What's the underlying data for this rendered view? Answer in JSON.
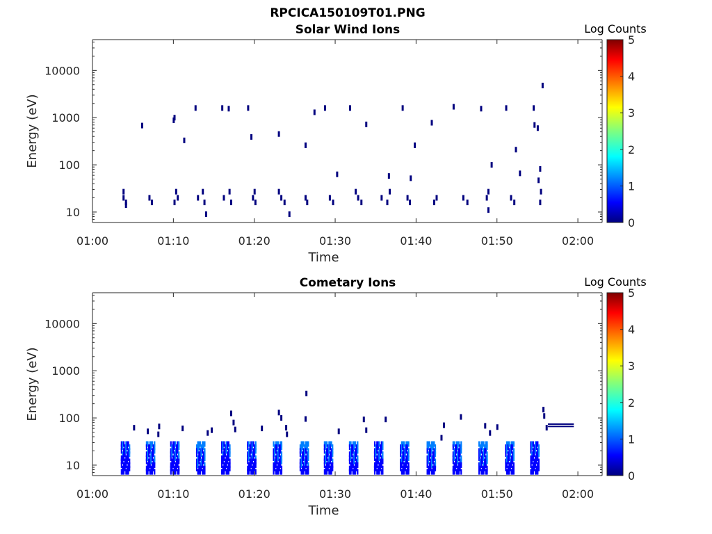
{
  "figure_title": "RPCICA150109T01.PNG",
  "colors": {
    "colormap": [
      "#00007f",
      "#0000ff",
      "#007fff",
      "#00ffff",
      "#7fff7f",
      "#ffff00",
      "#ff7f00",
      "#ff0000",
      "#7f0000"
    ],
    "axis": "#262626"
  },
  "chart_data": [
    {
      "type": "heatmap",
      "title": "Solar Wind Ions",
      "xlabel": "Time",
      "ylabel": "Energy (eV)",
      "yscale": "log",
      "xlim": [
        "01:00",
        "02:03"
      ],
      "ylim": [
        6,
        45000
      ],
      "xticks": [
        "01:00",
        "01:10",
        "01:20",
        "01:30",
        "01:40",
        "01:50",
        "02:00"
      ],
      "yticks": [
        "10",
        "100",
        "1000",
        "10000"
      ],
      "colorbar": {
        "label": "Log Counts",
        "range": [
          0,
          5
        ],
        "ticks": [
          "0",
          "1",
          "2",
          "3",
          "4",
          "5"
        ]
      },
      "grid": false,
      "points": [
        [
          "01:03.8",
          27,
          0.3
        ],
        [
          "01:03.8",
          20,
          0.3
        ],
        [
          "01:04.1",
          16,
          0.3
        ],
        [
          "01:04.1",
          14,
          0.3
        ],
        [
          "01:07.0",
          20,
          0.3
        ],
        [
          "01:07.3",
          16,
          0.3
        ],
        [
          "01:10.3",
          27,
          0.3
        ],
        [
          "01:10.1",
          16,
          0.3
        ],
        [
          "01:10.5",
          20,
          0.3
        ],
        [
          "01:13.0",
          20,
          0.3
        ],
        [
          "01:13.6",
          27,
          0.3
        ],
        [
          "01:13.8",
          16,
          0.3
        ],
        [
          "01:14.0",
          9,
          0.3
        ],
        [
          "01:16.2",
          20,
          0.3
        ],
        [
          "01:16.9",
          27,
          0.3
        ],
        [
          "01:17.1",
          16,
          0.3
        ],
        [
          "01:20.0",
          27,
          0.3
        ],
        [
          "01:19.8",
          20,
          0.3
        ],
        [
          "01:20.1",
          16,
          0.3
        ],
        [
          "01:23.0",
          27,
          0.3
        ],
        [
          "01:23.3",
          20,
          0.3
        ],
        [
          "01:23.7",
          16,
          0.3
        ],
        [
          "01:24.3",
          9,
          0.3
        ],
        [
          "01:26.3",
          20,
          0.3
        ],
        [
          "01:26.5",
          16,
          0.3
        ],
        [
          "01:29.3",
          20,
          0.3
        ],
        [
          "01:29.7",
          16,
          0.3
        ],
        [
          "01:32.5",
          27,
          0.3
        ],
        [
          "01:32.8",
          20,
          0.3
        ],
        [
          "01:33.2",
          16,
          0.3
        ],
        [
          "01:35.7",
          20,
          0.3
        ],
        [
          "01:36.4",
          16,
          0.3
        ],
        [
          "01:36.7",
          27,
          0.3
        ],
        [
          "01:38.9",
          20,
          0.3
        ],
        [
          "01:39.2",
          16,
          0.3
        ],
        [
          "01:42.5",
          20,
          0.3
        ],
        [
          "01:42.2",
          16,
          0.3
        ],
        [
          "01:45.8",
          20,
          0.3
        ],
        [
          "01:46.3",
          16,
          0.3
        ],
        [
          "01:48.9",
          27,
          0.3
        ],
        [
          "01:48.7",
          20,
          0.3
        ],
        [
          "01:48.9",
          11,
          0.3
        ],
        [
          "01:51.7",
          20,
          0.3
        ],
        [
          "01:52.1",
          16,
          0.3
        ],
        [
          "01:55.4",
          27,
          0.3
        ],
        [
          "01:55.3",
          16,
          0.3
        ],
        [
          "01:06.1",
          680,
          0.3
        ],
        [
          "01:10.1",
          1000,
          0.3
        ],
        [
          "01:10.0",
          880,
          0.3
        ],
        [
          "01:11.3",
          330,
          0.3
        ],
        [
          "01:12.7",
          1600,
          0.3
        ],
        [
          "01:16.0",
          1600,
          0.3
        ],
        [
          "01:16.8",
          1550,
          0.3
        ],
        [
          "01:19.2",
          1600,
          0.3
        ],
        [
          "01:19.6",
          390,
          0.3
        ],
        [
          "01:23.0",
          450,
          0.3
        ],
        [
          "01:26.3",
          260,
          0.3
        ],
        [
          "01:27.4",
          1300,
          0.3
        ],
        [
          "01:28.7",
          1600,
          0.3
        ],
        [
          "01:30.2",
          63,
          0.3
        ],
        [
          "01:31.8",
          1600,
          0.3
        ],
        [
          "01:33.8",
          720,
          0.3
        ],
        [
          "01:36.6",
          58,
          0.3
        ],
        [
          "01:38.3",
          1600,
          0.3
        ],
        [
          "01:39.3",
          52,
          0.3
        ],
        [
          "01:39.8",
          260,
          0.3
        ],
        [
          "01:41.9",
          780,
          0.3
        ],
        [
          "01:44.6",
          1700,
          0.3
        ],
        [
          "01:48.0",
          1550,
          0.3
        ],
        [
          "01:49.3",
          100,
          0.3
        ],
        [
          "01:51.1",
          1600,
          0.3
        ],
        [
          "01:52.3",
          210,
          0.3
        ],
        [
          "01:52.8",
          66,
          0.3
        ],
        [
          "01:54.5",
          1600,
          0.3
        ],
        [
          "01:54.6",
          700,
          0.3
        ],
        [
          "01:55.0",
          600,
          0.3
        ],
        [
          "01:55.1",
          47,
          0.3
        ],
        [
          "01:55.3",
          82,
          0.3
        ],
        [
          "01:55.6",
          4800,
          0.3
        ]
      ]
    },
    {
      "type": "heatmap",
      "title": "Cometary Ions",
      "xlabel": "Time",
      "ylabel": "Energy (eV)",
      "yscale": "log",
      "xlim": [
        "01:00",
        "02:03"
      ],
      "ylim": [
        6,
        45000
      ],
      "xticks": [
        "01:00",
        "01:10",
        "01:20",
        "01:30",
        "01:40",
        "01:50",
        "02:00"
      ],
      "yticks": [
        "10",
        "100",
        "1000",
        "10000"
      ],
      "colorbar": {
        "label": "Log Counts",
        "range": [
          0,
          5
        ],
        "ticks": [
          "0",
          "1",
          "2",
          "3",
          "4",
          "5"
        ]
      },
      "grid": false,
      "bursts_start": [
        "01:03.5",
        "01:06.6",
        "01:09.6",
        "01:12.8",
        "01:15.9",
        "01:19.1",
        "01:22.3",
        "01:25.6",
        "01:28.6",
        "01:31.7",
        "01:34.8",
        "01:38.0",
        "01:41.3",
        "01:44.5",
        "01:47.7",
        "01:51.0",
        "01:54.1"
      ],
      "bursts_level": [
        1.2,
        1.4,
        1.3,
        1.5,
        1.2,
        1.3,
        1.4,
        1.5,
        1.4,
        1.4,
        1.3,
        1.4,
        1.5,
        1.4,
        1.5,
        1.4,
        1.2
      ],
      "points": [
        [
          "01:05.1",
          62,
          0.3
        ],
        [
          "01:06.8",
          52,
          0.3
        ],
        [
          "01:08.2",
          66,
          0.3
        ],
        [
          "01:08.1",
          45,
          0.3
        ],
        [
          "01:11.1",
          60,
          0.3
        ],
        [
          "01:14.2",
          48,
          0.3
        ],
        [
          "01:14.7",
          55,
          0.3
        ],
        [
          "01:17.1",
          125,
          0.3
        ],
        [
          "01:17.4",
          80,
          0.3
        ],
        [
          "01:17.6",
          57,
          0.3
        ],
        [
          "01:20.9",
          60,
          0.3
        ],
        [
          "01:23.0",
          130,
          0.3
        ],
        [
          "01:23.3",
          100,
          0.3
        ],
        [
          "01:23.9",
          62,
          0.3
        ],
        [
          "01:24.0",
          45,
          0.3
        ],
        [
          "01:26.4",
          330,
          0.3
        ],
        [
          "01:26.3",
          95,
          0.3
        ],
        [
          "01:30.4",
          52,
          0.3
        ],
        [
          "01:33.5",
          93,
          0.3
        ],
        [
          "01:33.8",
          55,
          0.3
        ],
        [
          "01:36.2",
          93,
          0.3
        ],
        [
          "01:43.1",
          38,
          0.3
        ],
        [
          "01:43.4",
          70,
          0.3
        ],
        [
          "01:45.5",
          105,
          0.3
        ],
        [
          "01:48.5",
          68,
          0.3
        ],
        [
          "01:49.1",
          48,
          0.3
        ],
        [
          "01:50.0",
          64,
          0.3
        ],
        [
          "01:55.7",
          150,
          0.3
        ],
        [
          "01:55.8",
          110,
          0.3
        ],
        [
          "01:56.1",
          62,
          0.3
        ]
      ],
      "lines": [
        {
          "t0": "01:56.3",
          "t1": "01:59.5",
          "y": 74,
          "level": 0.2
        },
        {
          "t0": "01:56.3",
          "t1": "01:59.5",
          "y": 66,
          "level": 0.2
        }
      ]
    }
  ]
}
